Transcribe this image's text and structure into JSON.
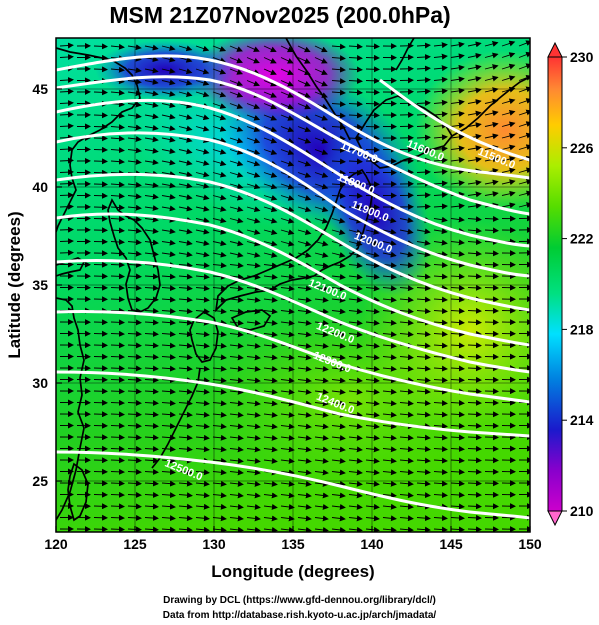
{
  "title": "MSM 21Z07Nov2025 (200.0hPa)",
  "credits": {
    "line1": "Drawing by DCL (https://www.gfd-dennou.org/library/dcl/)",
    "line2": "Data from http://database.rish.kyoto-u.ac.jp/arch/jmadata/"
  },
  "map": {
    "x_label": "Longitude (degrees)",
    "y_label": "Latitude  (degrees)",
    "x_ticks": [
      "120",
      "125",
      "130",
      "135",
      "140",
      "145",
      "150"
    ],
    "y_ticks": [
      "25",
      "30",
      "35",
      "40",
      "45"
    ],
    "x_range": [
      120,
      150
    ],
    "y_range": [
      22.4,
      47.6
    ],
    "contour_labels": [
      "11700.0",
      "11800.0",
      "11900.0",
      "12000.0",
      "12100.0",
      "12200.0",
      "12300.0",
      "12400.0",
      "12500.0",
      "11600.0",
      "11500.0"
    ],
    "contour_label_positions_deg": [
      [
        139.1,
        41.6
      ],
      [
        138.9,
        40.0
      ],
      [
        139.8,
        38.6
      ],
      [
        140.0,
        37.0
      ],
      [
        137.1,
        34.6
      ],
      [
        137.6,
        32.4
      ],
      [
        137.4,
        30.9
      ],
      [
        137.6,
        28.8
      ],
      [
        128.0,
        25.4
      ],
      [
        143.3,
        41.7
      ],
      [
        147.8,
        41.3
      ]
    ],
    "colors": {
      "coast": "#000000",
      "contours": "#ffffff",
      "wind_vectors": "#000000"
    }
  },
  "colorbar": {
    "ticks": [
      "230",
      "226",
      "222",
      "218",
      "214",
      "210"
    ],
    "range": [
      210,
      230
    ],
    "colors": [
      "#cc00cc",
      "#8800cc",
      "#1a1acc",
      "#0080e0",
      "#00e0ff",
      "#00e080",
      "#00cc33",
      "#55dd00",
      "#aaee00",
      "#ffcc00",
      "#ff8833",
      "#ff3333"
    ]
  }
}
